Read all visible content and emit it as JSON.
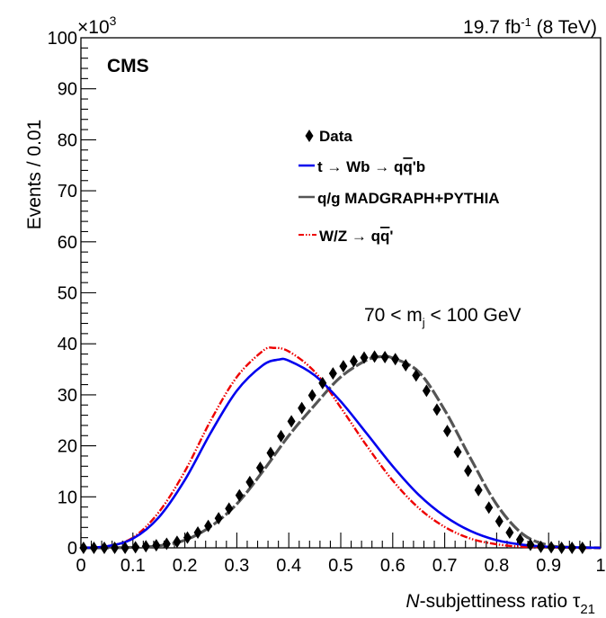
{
  "chart_data": {
    "type": "line",
    "title": "",
    "experiment": "CMS",
    "luminosity_text": "19.7 fb",
    "luminosity_sup": "-1",
    "energy_text": " (8 TeV)",
    "region_text_pre": "70 < m",
    "region_text_sub": "j",
    "region_text_post": " < 100 GeV",
    "xlabel_italic": "N",
    "xlabel_rest": "-subjettiness ratio τ",
    "xlabel_sub": "21",
    "ylabel": "Events / 0.01",
    "y_multiplier_base": "×10",
    "y_multiplier_exp": "3",
    "xlim": [
      0,
      1
    ],
    "ylim": [
      0,
      100
    ],
    "x_ticks": [
      0,
      0.1,
      0.2,
      0.3,
      0.4,
      0.5,
      0.6,
      0.7,
      0.8,
      0.9,
      1
    ],
    "x_tick_labels": [
      "0",
      "0.1",
      "0.2",
      "0.3",
      "0.4",
      "0.5",
      "0.6",
      "0.7",
      "0.8",
      "0.9",
      "1"
    ],
    "y_ticks": [
      0,
      10,
      20,
      30,
      40,
      50,
      60,
      70,
      80,
      90,
      100
    ],
    "y_tick_labels": [
      "0",
      "10",
      "20",
      "30",
      "40",
      "50",
      "60",
      "70",
      "80",
      "90",
      "100"
    ],
    "legend": {
      "placement": "upper-center",
      "entries": [
        {
          "key": "data",
          "style": "marker",
          "color": "#000000",
          "label": "Data"
        },
        {
          "key": "top",
          "style": "solid",
          "color": "#0000ee",
          "label_pre": "t → Wb → q",
          "label_bar": "q",
          "label_post": "'b"
        },
        {
          "key": "qcd",
          "style": "dashed",
          "color": "#555555",
          "label": "q/g MADGRAPH+PYTHIA"
        },
        {
          "key": "wz",
          "style": "dashdot",
          "color": "#ee0000",
          "label_pre": "W/Z → q",
          "label_bar": "q",
          "label_post": "'"
        }
      ]
    },
    "series": [
      {
        "key": "data",
        "color": "#000000",
        "x": [
          0.005,
          0.025,
          0.045,
          0.065,
          0.085,
          0.105,
          0.125,
          0.145,
          0.165,
          0.185,
          0.205,
          0.225,
          0.245,
          0.265,
          0.285,
          0.305,
          0.325,
          0.345,
          0.365,
          0.385,
          0.405,
          0.425,
          0.445,
          0.465,
          0.485,
          0.505,
          0.525,
          0.545,
          0.565,
          0.585,
          0.605,
          0.625,
          0.645,
          0.665,
          0.685,
          0.705,
          0.725,
          0.745,
          0.765,
          0.785,
          0.805,
          0.825,
          0.845,
          0.865,
          0.885,
          0.905,
          0.925,
          0.945,
          0.965
        ],
        "y": [
          0,
          0,
          0,
          0,
          0,
          0.1,
          0.3,
          0.5,
          0.8,
          1.2,
          2.0,
          3.0,
          4.3,
          5.8,
          7.7,
          10.3,
          12.9,
          15.7,
          18.6,
          21.9,
          24.8,
          27.4,
          29.9,
          32.3,
          34.2,
          35.6,
          36.6,
          37.3,
          37.5,
          37.4,
          37.0,
          35.8,
          33.8,
          30.8,
          27.1,
          22.9,
          18.8,
          15.1,
          11.3,
          7.9,
          5.2,
          3.0,
          1.6,
          0.6,
          0.2,
          0.1,
          0,
          0,
          0
        ]
      },
      {
        "key": "qcd",
        "color": "#555555",
        "x": [
          0,
          0.05,
          0.1,
          0.15,
          0.2,
          0.25,
          0.3,
          0.35,
          0.4,
          0.45,
          0.5,
          0.55,
          0.58,
          0.6,
          0.65,
          0.7,
          0.75,
          0.8,
          0.85,
          0.9,
          0.95,
          1.0
        ],
        "y": [
          0,
          0,
          0.1,
          0.4,
          1.5,
          4.2,
          8.6,
          15.0,
          22.0,
          28.0,
          33.5,
          36.8,
          37.5,
          37.2,
          34.5,
          27.0,
          17.5,
          8.5,
          2.7,
          0.5,
          0.1,
          0
        ]
      },
      {
        "key": "top",
        "color": "#0000ee",
        "x": [
          0,
          0.05,
          0.1,
          0.15,
          0.2,
          0.25,
          0.3,
          0.35,
          0.38,
          0.4,
          0.45,
          0.5,
          0.55,
          0.6,
          0.65,
          0.7,
          0.75,
          0.8,
          0.85,
          0.9,
          0.95,
          1.0
        ],
        "y": [
          0,
          0.3,
          1.8,
          6.0,
          13.3,
          22.6,
          30.8,
          35.8,
          36.9,
          36.7,
          33.8,
          28.7,
          22.4,
          16.0,
          10.4,
          6.2,
          3.3,
          1.5,
          0.6,
          0.2,
          0.1,
          0
        ]
      },
      {
        "key": "wz",
        "color": "#ee0000",
        "x": [
          0,
          0.05,
          0.1,
          0.15,
          0.2,
          0.25,
          0.3,
          0.35,
          0.37,
          0.4,
          0.45,
          0.5,
          0.55,
          0.6,
          0.65,
          0.7,
          0.75,
          0.8,
          0.85,
          0.9,
          0.95,
          1.0
        ],
        "y": [
          0,
          0.3,
          2.0,
          7.0,
          15.0,
          25.0,
          33.5,
          38.6,
          39.2,
          38.5,
          34.5,
          27.5,
          20.0,
          13.2,
          7.8,
          4.1,
          1.8,
          0.7,
          0.2,
          0.1,
          0,
          0
        ]
      }
    ]
  }
}
